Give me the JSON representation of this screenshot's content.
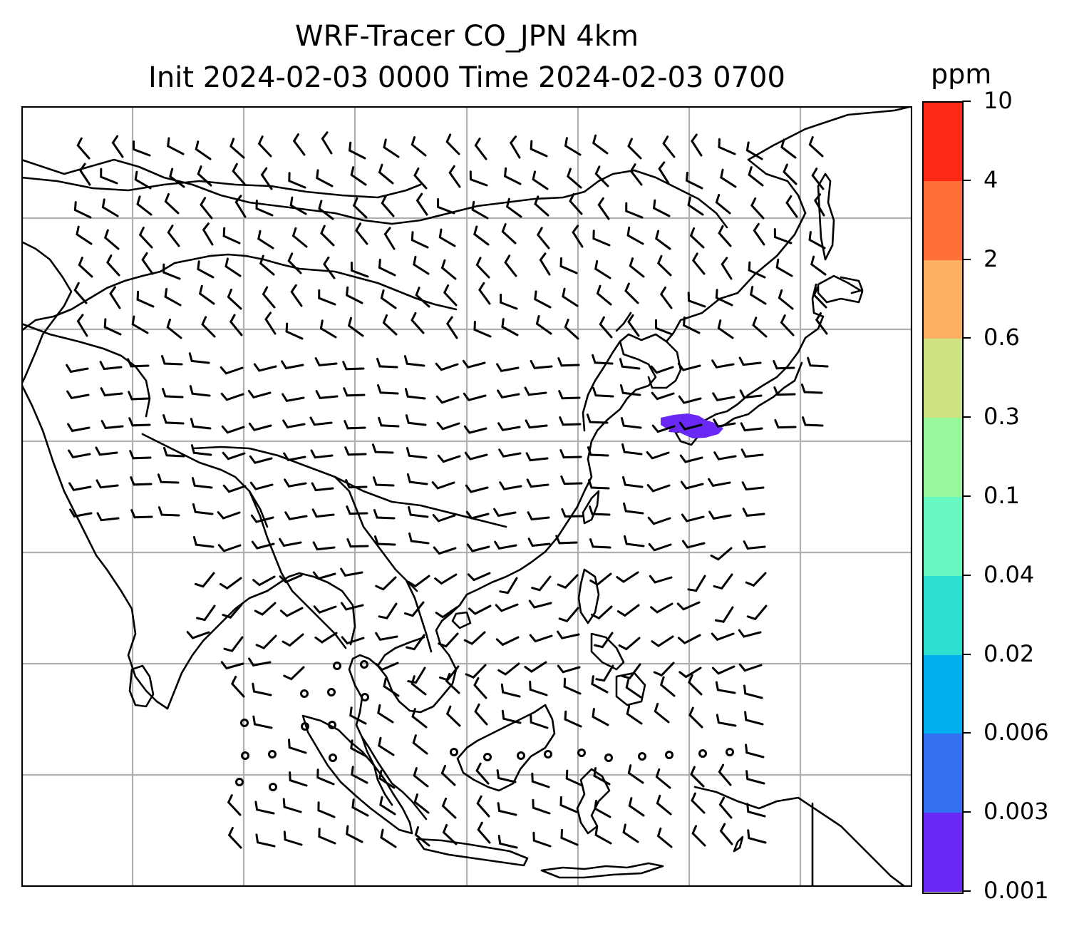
{
  "title": {
    "line1": "WRF-Tracer CO_JPN 4km",
    "line2": "Init 2024-02-03 0000 Time 2024-02-03 0700"
  },
  "colorbar": {
    "units": "ppm",
    "levels": [
      "0.001",
      "0.003",
      "0.006",
      "0.02",
      "0.04",
      "0.1",
      "0.3",
      "0.6",
      "2",
      "4",
      "10"
    ],
    "colors": [
      "#6a28f5",
      "#3371f2",
      "#00b0ee",
      "#2ee0d2",
      "#66f8c0",
      "#96f89a",
      "#cde283",
      "#fdb062",
      "#fe6f3a",
      "#fe2915"
    ]
  },
  "map": {
    "gridlines": true,
    "tracer_plume": {
      "region": "Japan (central Honshu)",
      "concentration_bin_ppm": [
        0.001,
        0.003
      ],
      "color": "#6a28f5"
    },
    "line_color": "#000000",
    "grid_color": "#b0b0b0"
  }
}
